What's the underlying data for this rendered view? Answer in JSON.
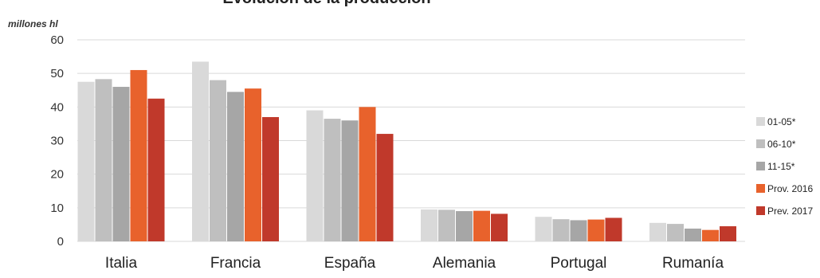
{
  "chart_data": {
    "type": "bar",
    "title": "Evolución de la producción",
    "ylabel": "millones hl",
    "ylim": [
      0,
      60
    ],
    "yticks": [
      0,
      10,
      20,
      30,
      40,
      50,
      60
    ],
    "grid": true,
    "legend_position": "right",
    "categories": [
      "Italia",
      "Francia",
      "España",
      "Alemania",
      "Portugal",
      "Rumanía"
    ],
    "series": [
      {
        "name": "01-05*",
        "color": "#d9d9d9",
        "values": [
          47.5,
          53.5,
          39,
          9.5,
          7.3,
          5.5
        ]
      },
      {
        "name": "06-10*",
        "color": "#bfbfbf",
        "values": [
          48.3,
          48,
          36.5,
          9.4,
          6.6,
          5.2
        ]
      },
      {
        "name": "11-15*",
        "color": "#a6a6a6",
        "values": [
          46,
          44.5,
          36,
          9,
          6.3,
          3.8
        ]
      },
      {
        "name": "Prov. 2016",
        "color": "#e8622c",
        "values": [
          51,
          45.5,
          40,
          9.1,
          6.5,
          3.4
        ]
      },
      {
        "name": "Prev. 2017",
        "color": "#c0392b",
        "values": [
          42.5,
          37,
          32,
          8.2,
          7,
          4.5
        ]
      }
    ]
  }
}
